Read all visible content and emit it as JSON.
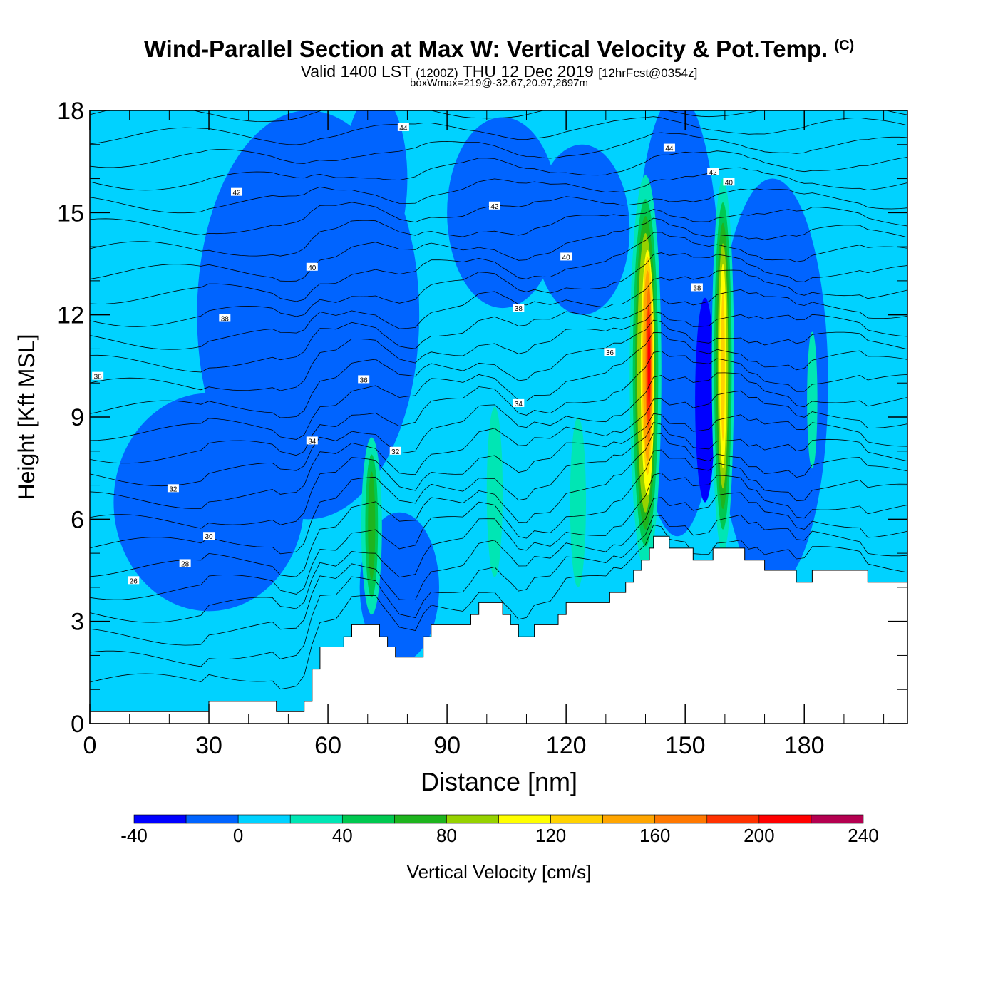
{
  "header": {
    "title": "Wind-Parallel Section at Max W: Vertical Velocity & Pot.Temp.",
    "copyright": "(C)",
    "valid_prefix": "Valid 1400 LST",
    "valid_utc": "(1200Z)",
    "valid_date": "THU 12 Dec 2019",
    "forecast_info": "[12hrFcst@0354z]",
    "box_wmax": "boxWmax=219@-32.67,20.97,2697m"
  },
  "colors": {
    "background": "#00d2ff",
    "contour_line": "#000000",
    "terrain": "#ffffff"
  },
  "colorbar": {
    "label": "Vertical Velocity [cm/s]",
    "tick_labels": [
      "-40",
      "0",
      "40",
      "80",
      "120",
      "160",
      "200",
      "240"
    ],
    "colors": [
      "#0000ff",
      "#0064ff",
      "#00d2ff",
      "#00e6b4",
      "#00c850",
      "#1eb41e",
      "#96d200",
      "#ffff00",
      "#ffd200",
      "#ffa500",
      "#ff7800",
      "#ff3200",
      "#ff0000",
      "#b40050"
    ]
  },
  "chart_data": {
    "type": "heatmap",
    "xlabel": "Distance [nm]",
    "ylabel": "Height [Kft MSL]",
    "xlim": [
      0,
      206
    ],
    "ylim": [
      0,
      18
    ],
    "x_ticks": [
      0,
      30,
      60,
      90,
      120,
      150,
      180
    ],
    "y_ticks": [
      0,
      3,
      6,
      9,
      12,
      15,
      18
    ],
    "z_units": "cm/s",
    "z_range": [
      -40,
      240
    ],
    "terrain": [
      [
        0,
        0.35
      ],
      [
        30,
        0.35
      ],
      [
        30,
        0.65
      ],
      [
        47,
        0.65
      ],
      [
        47,
        0.35
      ],
      [
        54,
        0.35
      ],
      [
        54,
        0.65
      ],
      [
        56,
        0.65
      ],
      [
        56,
        1.6
      ],
      [
        58,
        1.6
      ],
      [
        58,
        2.25
      ],
      [
        64,
        2.25
      ],
      [
        64,
        2.55
      ],
      [
        66,
        2.55
      ],
      [
        66,
        2.9
      ],
      [
        73,
        2.9
      ],
      [
        73,
        2.55
      ],
      [
        75,
        2.55
      ],
      [
        75,
        2.25
      ],
      [
        77,
        2.25
      ],
      [
        77,
        1.95
      ],
      [
        84,
        1.95
      ],
      [
        84,
        2.55
      ],
      [
        86,
        2.55
      ],
      [
        86,
        2.9
      ],
      [
        96,
        2.9
      ],
      [
        96,
        3.2
      ],
      [
        98,
        3.2
      ],
      [
        98,
        3.55
      ],
      [
        104,
        3.55
      ],
      [
        104,
        3.2
      ],
      [
        106,
        3.2
      ],
      [
        106,
        2.9
      ],
      [
        108,
        2.9
      ],
      [
        108,
        2.55
      ],
      [
        112,
        2.55
      ],
      [
        112,
        2.9
      ],
      [
        118,
        2.9
      ],
      [
        118,
        3.2
      ],
      [
        120,
        3.2
      ],
      [
        120,
        3.55
      ],
      [
        131,
        3.55
      ],
      [
        131,
        3.85
      ],
      [
        135,
        3.85
      ],
      [
        135,
        4.15
      ],
      [
        137,
        4.15
      ],
      [
        137,
        4.5
      ],
      [
        139,
        4.5
      ],
      [
        139,
        4.8
      ],
      [
        141,
        4.8
      ],
      [
        141,
        5.15
      ],
      [
        142,
        5.15
      ],
      [
        142,
        5.5
      ],
      [
        146,
        5.5
      ],
      [
        146,
        5.15
      ],
      [
        152,
        5.15
      ],
      [
        152,
        4.8
      ],
      [
        157,
        4.8
      ],
      [
        157,
        5.15
      ],
      [
        165,
        5.15
      ],
      [
        165,
        4.8
      ],
      [
        170,
        4.8
      ],
      [
        170,
        4.5
      ],
      [
        178,
        4.5
      ],
      [
        178,
        4.15
      ],
      [
        182,
        4.15
      ],
      [
        182,
        4.5
      ],
      [
        196,
        4.5
      ],
      [
        196,
        4.15
      ],
      [
        206,
        4.15
      ]
    ],
    "contour_labels": [
      {
        "x": 79,
        "y": 17.5,
        "text": "44"
      },
      {
        "x": 146,
        "y": 16.9,
        "text": "44"
      },
      {
        "x": 157,
        "y": 16.2,
        "text": "42"
      },
      {
        "x": 161,
        "y": 15.9,
        "text": "40"
      },
      {
        "x": 37,
        "y": 15.6,
        "text": "42"
      },
      {
        "x": 102,
        "y": 15.2,
        "text": "42"
      },
      {
        "x": 120,
        "y": 13.7,
        "text": "40"
      },
      {
        "x": 56,
        "y": 13.4,
        "text": "40"
      },
      {
        "x": 153,
        "y": 12.8,
        "text": "38"
      },
      {
        "x": 108,
        "y": 12.2,
        "text": "38"
      },
      {
        "x": 34,
        "y": 11.9,
        "text": "38"
      },
      {
        "x": 131,
        "y": 10.9,
        "text": "36"
      },
      {
        "x": 2,
        "y": 10.2,
        "text": "36"
      },
      {
        "x": 69,
        "y": 10.1,
        "text": "36"
      },
      {
        "x": 108,
        "y": 9.4,
        "text": "34"
      },
      {
        "x": 56,
        "y": 8.3,
        "text": "34"
      },
      {
        "x": 77,
        "y": 8.0,
        "text": "32"
      },
      {
        "x": 21,
        "y": 6.9,
        "text": "32"
      },
      {
        "x": 30,
        "y": 5.5,
        "text": "30"
      },
      {
        "x": 24,
        "y": 4.7,
        "text": "28"
      },
      {
        "x": 11,
        "y": 4.2,
        "text": "26"
      }
    ],
    "regions": [
      {
        "value": -20,
        "center": [
          55,
          12
        ],
        "radii": [
          28,
          6
        ]
      },
      {
        "value": -20,
        "center": [
          30,
          6.5
        ],
        "radii": [
          24,
          3.2
        ]
      },
      {
        "value": -20,
        "center": [
          78,
          4
        ],
        "radii": [
          10,
          2.2
        ]
      },
      {
        "value": -20,
        "center": [
          148,
          12
        ],
        "radii": [
          11,
          6.5
        ]
      },
      {
        "value": -20,
        "center": [
          172,
          10
        ],
        "radii": [
          14,
          6
        ]
      },
      {
        "value": -20,
        "center": [
          104,
          15
        ],
        "radii": [
          14,
          2.8
        ]
      },
      {
        "value": -20,
        "center": [
          124,
          14.5
        ],
        "radii": [
          12,
          2.5
        ]
      },
      {
        "value": -20,
        "center": [
          72,
          16
        ],
        "radii": [
          8,
          2.5
        ]
      },
      {
        "value": -40,
        "center": [
          155,
          9.5
        ],
        "radii": [
          2.5,
          3
        ]
      },
      {
        "value": 20,
        "center": [
          71,
          5.8
        ],
        "radii": [
          2.6,
          2.6
        ]
      },
      {
        "value": 40,
        "center": [
          71,
          5.8
        ],
        "radii": [
          1.6,
          2.1
        ]
      },
      {
        "value": 60,
        "center": [
          71,
          5.8
        ],
        "radii": [
          0.9,
          1.6
        ]
      },
      {
        "value": 20,
        "center": [
          102,
          6.8
        ],
        "radii": [
          2,
          2.5
        ]
      },
      {
        "value": 20,
        "center": [
          123,
          6.5
        ],
        "radii": [
          2,
          2.5
        ]
      },
      {
        "value": 20,
        "center": [
          182,
          9.5
        ],
        "radii": [
          1.3,
          2
        ]
      },
      {
        "value": 20,
        "center": [
          140,
          10.3
        ],
        "radii": [
          4,
          5.8
        ]
      },
      {
        "value": 40,
        "center": [
          140,
          10.3
        ],
        "radii": [
          3.2,
          5.1
        ]
      },
      {
        "value": 60,
        "center": [
          140,
          10.3
        ],
        "radii": [
          2.6,
          4.6
        ]
      },
      {
        "value": 80,
        "center": [
          140,
          10.3
        ],
        "radii": [
          2.1,
          4.1
        ]
      },
      {
        "value": 100,
        "center": [
          140.5,
          10.3
        ],
        "radii": [
          1.7,
          3.6
        ]
      },
      {
        "value": 120,
        "center": [
          140.5,
          10.5
        ],
        "radii": [
          1.4,
          3.2
        ]
      },
      {
        "value": 140,
        "center": [
          140.5,
          10.5
        ],
        "radii": [
          1.1,
          2.8
        ]
      },
      {
        "value": 160,
        "center": [
          140.8,
          10.5
        ],
        "radii": [
          0.8,
          2.3
        ]
      },
      {
        "value": 180,
        "center": [
          140.8,
          10.5
        ],
        "radii": [
          0.55,
          1.8
        ]
      },
      {
        "value": 200,
        "center": [
          140.9,
          10.5
        ],
        "radii": [
          0.3,
          1.2
        ]
      },
      {
        "value": 20,
        "center": [
          159.5,
          10.5
        ],
        "radii": [
          2.8,
          5.5
        ]
      },
      {
        "value": 40,
        "center": [
          159.5,
          10.5
        ],
        "radii": [
          2.2,
          4.8
        ]
      },
      {
        "value": 60,
        "center": [
          159.5,
          10.5
        ],
        "radii": [
          1.7,
          4.2
        ]
      },
      {
        "value": 80,
        "center": [
          159.5,
          10.5
        ],
        "radii": [
          1.3,
          3.6
        ]
      },
      {
        "value": 100,
        "center": [
          159.5,
          10.5
        ],
        "radii": [
          0.9,
          3
        ]
      },
      {
        "value": 120,
        "center": [
          159.5,
          10.5
        ],
        "radii": [
          0.5,
          2.2
        ]
      }
    ]
  }
}
